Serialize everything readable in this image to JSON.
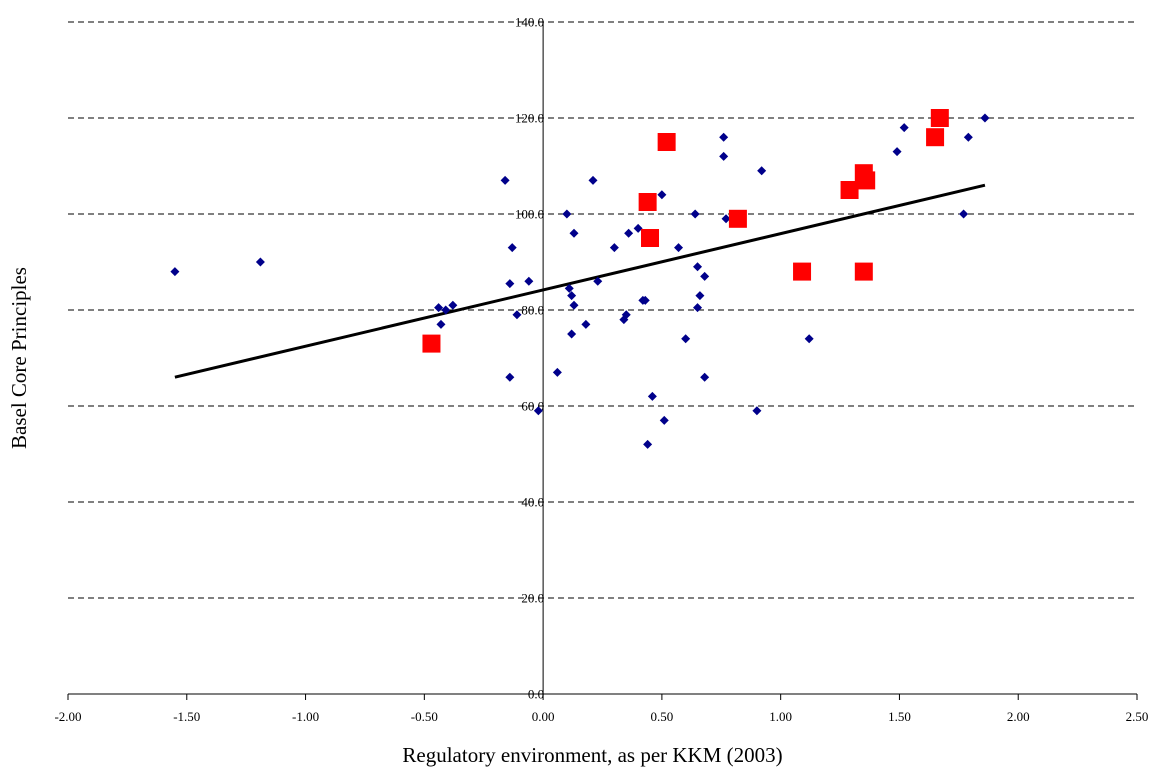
{
  "chart_data": {
    "type": "scatter",
    "xlabel": "Regulatory environment, as per KKM (2003)",
    "ylabel": "Basel Core Principles",
    "xlim": [
      -2.0,
      2.5
    ],
    "ylim": [
      0,
      140
    ],
    "x_ticks": [
      "-2.00",
      "-1.50",
      "-1.00",
      "-0.50",
      "0.00",
      "0.50",
      "1.00",
      "1.50",
      "2.00",
      "2.50"
    ],
    "y_ticks": [
      "0.0",
      "20.0",
      "40.0",
      "60.0",
      "80.0",
      "100.0",
      "120.0",
      "140.0"
    ],
    "grid": "horizontal dashed",
    "series": [
      {
        "marker": "diamond",
        "color": "#00008B",
        "points": [
          [
            -1.55,
            88
          ],
          [
            -1.19,
            90
          ],
          [
            -0.44,
            80.5
          ],
          [
            -0.43,
            77
          ],
          [
            -0.41,
            80
          ],
          [
            -0.38,
            81
          ],
          [
            -0.16,
            107
          ],
          [
            -0.14,
            66
          ],
          [
            -0.14,
            85.5
          ],
          [
            -0.13,
            93
          ],
          [
            -0.11,
            79
          ],
          [
            -0.06,
            86
          ],
          [
            -0.02,
            59
          ],
          [
            0.06,
            67
          ],
          [
            0.1,
            100
          ],
          [
            0.11,
            84.5
          ],
          [
            0.12,
            83
          ],
          [
            0.12,
            75
          ],
          [
            0.13,
            81
          ],
          [
            0.13,
            96
          ],
          [
            0.18,
            77
          ],
          [
            0.21,
            107
          ],
          [
            0.23,
            86
          ],
          [
            0.3,
            93
          ],
          [
            0.34,
            78
          ],
          [
            0.35,
            79
          ],
          [
            0.36,
            96
          ],
          [
            0.4,
            97
          ],
          [
            0.42,
            82
          ],
          [
            0.43,
            82
          ],
          [
            0.44,
            52
          ],
          [
            0.46,
            62
          ],
          [
            0.5,
            104
          ],
          [
            0.51,
            57
          ],
          [
            0.57,
            93
          ],
          [
            0.6,
            74
          ],
          [
            0.64,
            100
          ],
          [
            0.65,
            89
          ],
          [
            0.65,
            80.5
          ],
          [
            0.66,
            83
          ],
          [
            0.68,
            66
          ],
          [
            0.68,
            87
          ],
          [
            0.76,
            116
          ],
          [
            0.76,
            112
          ],
          [
            0.77,
            99
          ],
          [
            0.92,
            109
          ],
          [
            0.9,
            59
          ],
          [
            1.12,
            74
          ],
          [
            1.49,
            113
          ],
          [
            1.52,
            118
          ],
          [
            1.77,
            100
          ],
          [
            1.79,
            116
          ],
          [
            1.86,
            120
          ]
        ]
      },
      {
        "marker": "square",
        "color": "#FF0000",
        "points": [
          [
            -0.47,
            73
          ],
          [
            0.44,
            102.5
          ],
          [
            0.45,
            95
          ],
          [
            0.52,
            115
          ],
          [
            0.82,
            99
          ],
          [
            1.09,
            88
          ],
          [
            1.29,
            105
          ],
          [
            1.35,
            108.5
          ],
          [
            1.36,
            107
          ],
          [
            1.35,
            88
          ],
          [
            1.65,
            116
          ],
          [
            1.67,
            120
          ]
        ]
      }
    ],
    "trendline": {
      "x": [
        -1.55,
        1.86
      ],
      "y": [
        66,
        106
      ],
      "color": "#000000"
    }
  }
}
